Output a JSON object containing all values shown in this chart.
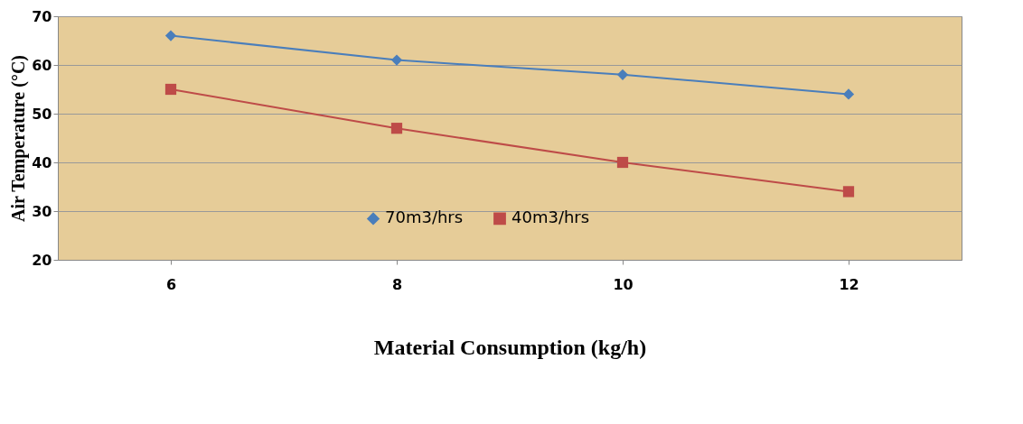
{
  "chart_data": {
    "type": "line",
    "xlabel": "Material Consumption (kg/h)",
    "ylabel": "Air Temperature (°C)",
    "categories": [
      "6",
      "8",
      "10",
      "12"
    ],
    "series": [
      {
        "name": "70m3/hrs",
        "color": "#4a7ebb",
        "marker": "diamond",
        "values": [
          66,
          61,
          58,
          54
        ]
      },
      {
        "name": "40m3/hrs",
        "color": "#be4b48",
        "marker": "square",
        "values": [
          55,
          47,
          40,
          34
        ]
      }
    ],
    "ylim": [
      20,
      70
    ],
    "yticks": [
      20,
      30,
      40,
      50,
      60,
      70
    ],
    "grid": "y",
    "legend": "bottom",
    "line_style": "solid"
  }
}
